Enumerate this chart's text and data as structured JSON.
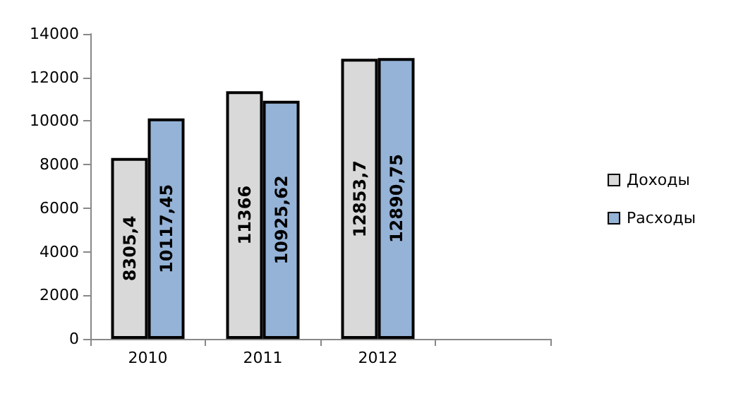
{
  "chart_data": {
    "type": "bar",
    "categories": [
      "2010",
      "2011",
      "2012",
      null
    ],
    "series": [
      {
        "name": "Доходы",
        "color": "#d9d9d9",
        "values": [
          8305.4,
          11366,
          12853.7,
          null
        ],
        "value_labels": [
          "8305,4",
          "11366",
          "12853,7",
          null
        ]
      },
      {
        "name": "Расходы",
        "color": "#95b3d7",
        "values": [
          10117.45,
          10925.62,
          12890.75,
          null
        ],
        "value_labels": [
          "10117,45",
          "10925,62",
          "12890,75",
          null
        ]
      }
    ],
    "ylim": [
      0,
      14000
    ],
    "yticks": [
      0,
      2000,
      4000,
      6000,
      8000,
      10000,
      12000,
      14000
    ],
    "grid": false,
    "legend": "right"
  }
}
